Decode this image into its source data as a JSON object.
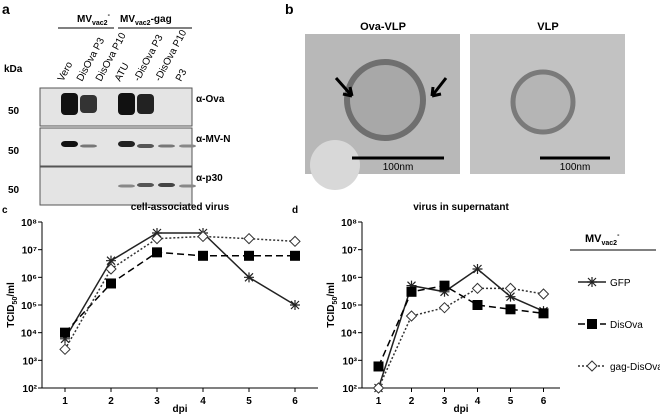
{
  "panel_a": {
    "label": "a",
    "kda": "kDa",
    "group1": {
      "main": "MV",
      "sub": "vac2",
      "sup": "-"
    },
    "group2": {
      "main": "MV",
      "sub": "vac2",
      "rest": "-gag"
    },
    "lanes": [
      "Vero",
      "DisOva P3",
      "DisOva P10",
      "ATU",
      "-DisOva P3",
      "-DisOva P10",
      "P3"
    ],
    "blots": [
      {
        "marker": "50",
        "antibody": "α-Ova"
      },
      {
        "marker": "50",
        "antibody": "α-MV-N"
      },
      {
        "marker": "50",
        "antibody": "α-p30"
      }
    ]
  },
  "panel_b": {
    "label": "b",
    "images": [
      {
        "title": "Ova-VLP",
        "scale": "100nm"
      },
      {
        "title": "VLP",
        "scale": "100nm"
      }
    ]
  },
  "legend_title": {
    "main": "MV",
    "sub": "vac2",
    "sup": "-"
  },
  "chart_data": [
    {
      "type": "line",
      "label": "c",
      "title": "cell-associated virus",
      "y_label": {
        "main": "TCID",
        "sub": "50",
        "rest": "/ml"
      },
      "x_label": "dpi",
      "x": [
        1,
        2,
        3,
        4,
        5,
        6
      ],
      "xlim": [
        0.5,
        6.5
      ],
      "xticks": [
        1,
        2,
        3,
        4,
        5,
        6
      ],
      "log_y": true,
      "ylim": [
        100,
        100000000
      ],
      "yticks": [
        {
          "value": 100,
          "label": "10²"
        },
        {
          "value": 1000,
          "label": "10³"
        },
        {
          "value": 10000,
          "label": "10⁴"
        },
        {
          "value": 100000,
          "label": "10⁵"
        },
        {
          "value": 1000000,
          "label": "10⁶"
        },
        {
          "value": 10000000,
          "label": "10⁷"
        },
        {
          "value": 100000000,
          "label": "10⁸"
        }
      ],
      "series": [
        {
          "name": "GFP",
          "color": "#222222",
          "marker": "asterisk",
          "dash": "solid",
          "values": [
            6000,
            4000000,
            40000000,
            40000000,
            1000000,
            100000
          ]
        },
        {
          "name": "DisOva",
          "color": "#000000",
          "marker": "square",
          "dash": "dashed",
          "values": [
            10000,
            600000,
            8000000,
            6000000,
            6000000,
            6000000
          ]
        },
        {
          "name": "gag-DisOva",
          "color": "#333333",
          "marker": "diamond",
          "dash": "dotted",
          "values": [
            2500,
            2000000,
            25000000,
            30000000,
            25000000,
            20000000
          ]
        }
      ]
    },
    {
      "type": "line",
      "label": "d",
      "title": "virus in supernatant",
      "y_label": {
        "main": "TCID",
        "sub": "50",
        "rest": "/ml"
      },
      "x_label": "dpi",
      "x": [
        1,
        2,
        3,
        4,
        5,
        6
      ],
      "xlim": [
        0.5,
        6.5
      ],
      "xticks": [
        1,
        2,
        3,
        4,
        5,
        6
      ],
      "log_y": true,
      "ylim": [
        100,
        100000000
      ],
      "yticks": [
        {
          "value": 100,
          "label": "10²"
        },
        {
          "value": 1000,
          "label": "10³"
        },
        {
          "value": 10000,
          "label": "10⁴"
        },
        {
          "value": 100000,
          "label": "10⁵"
        },
        {
          "value": 1000000,
          "label": "10⁶"
        },
        {
          "value": 10000000,
          "label": "10⁷"
        },
        {
          "value": 100000000,
          "label": "10⁸"
        }
      ],
      "series": [
        {
          "name": "GFP",
          "color": "#222222",
          "marker": "asterisk",
          "dash": "solid",
          "values": [
            100,
            500000,
            300000,
            2000000,
            200000,
            60000
          ]
        },
        {
          "name": "DisOva",
          "color": "#000000",
          "marker": "square",
          "dash": "dashed",
          "values": [
            600,
            300000,
            500000,
            100000,
            70000,
            50000
          ]
        },
        {
          "name": "gag-DisOva",
          "color": "#333333",
          "marker": "diamond",
          "dash": "dotted",
          "values": [
            100,
            40000,
            80000,
            400000,
            400000,
            250000
          ]
        }
      ]
    }
  ]
}
